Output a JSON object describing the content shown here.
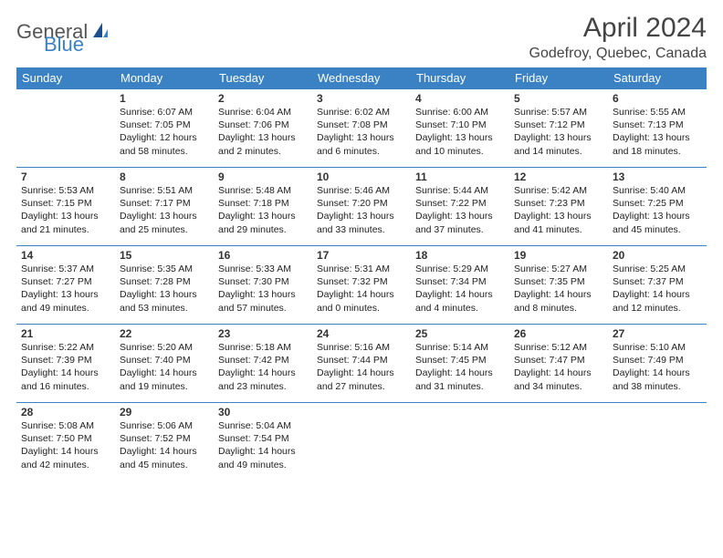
{
  "brand": {
    "general": "General",
    "blue": "Blue"
  },
  "title": "April 2024",
  "location": "Godefroy, Quebec, Canada",
  "colors": {
    "header_bg": "#3b82c4",
    "header_text": "#ffffff",
    "border": "#3b82c4",
    "text": "#222222",
    "title": "#444444"
  },
  "weekdays": [
    "Sunday",
    "Monday",
    "Tuesday",
    "Wednesday",
    "Thursday",
    "Friday",
    "Saturday"
  ],
  "weeks": [
    [
      null,
      {
        "n": "1",
        "rise": "Sunrise: 6:07 AM",
        "set": "Sunset: 7:05 PM",
        "d1": "Daylight: 12 hours",
        "d2": "and 58 minutes."
      },
      {
        "n": "2",
        "rise": "Sunrise: 6:04 AM",
        "set": "Sunset: 7:06 PM",
        "d1": "Daylight: 13 hours",
        "d2": "and 2 minutes."
      },
      {
        "n": "3",
        "rise": "Sunrise: 6:02 AM",
        "set": "Sunset: 7:08 PM",
        "d1": "Daylight: 13 hours",
        "d2": "and 6 minutes."
      },
      {
        "n": "4",
        "rise": "Sunrise: 6:00 AM",
        "set": "Sunset: 7:10 PM",
        "d1": "Daylight: 13 hours",
        "d2": "and 10 minutes."
      },
      {
        "n": "5",
        "rise": "Sunrise: 5:57 AM",
        "set": "Sunset: 7:12 PM",
        "d1": "Daylight: 13 hours",
        "d2": "and 14 minutes."
      },
      {
        "n": "6",
        "rise": "Sunrise: 5:55 AM",
        "set": "Sunset: 7:13 PM",
        "d1": "Daylight: 13 hours",
        "d2": "and 18 minutes."
      }
    ],
    [
      {
        "n": "7",
        "rise": "Sunrise: 5:53 AM",
        "set": "Sunset: 7:15 PM",
        "d1": "Daylight: 13 hours",
        "d2": "and 21 minutes."
      },
      {
        "n": "8",
        "rise": "Sunrise: 5:51 AM",
        "set": "Sunset: 7:17 PM",
        "d1": "Daylight: 13 hours",
        "d2": "and 25 minutes."
      },
      {
        "n": "9",
        "rise": "Sunrise: 5:48 AM",
        "set": "Sunset: 7:18 PM",
        "d1": "Daylight: 13 hours",
        "d2": "and 29 minutes."
      },
      {
        "n": "10",
        "rise": "Sunrise: 5:46 AM",
        "set": "Sunset: 7:20 PM",
        "d1": "Daylight: 13 hours",
        "d2": "and 33 minutes."
      },
      {
        "n": "11",
        "rise": "Sunrise: 5:44 AM",
        "set": "Sunset: 7:22 PM",
        "d1": "Daylight: 13 hours",
        "d2": "and 37 minutes."
      },
      {
        "n": "12",
        "rise": "Sunrise: 5:42 AM",
        "set": "Sunset: 7:23 PM",
        "d1": "Daylight: 13 hours",
        "d2": "and 41 minutes."
      },
      {
        "n": "13",
        "rise": "Sunrise: 5:40 AM",
        "set": "Sunset: 7:25 PM",
        "d1": "Daylight: 13 hours",
        "d2": "and 45 minutes."
      }
    ],
    [
      {
        "n": "14",
        "rise": "Sunrise: 5:37 AM",
        "set": "Sunset: 7:27 PM",
        "d1": "Daylight: 13 hours",
        "d2": "and 49 minutes."
      },
      {
        "n": "15",
        "rise": "Sunrise: 5:35 AM",
        "set": "Sunset: 7:28 PM",
        "d1": "Daylight: 13 hours",
        "d2": "and 53 minutes."
      },
      {
        "n": "16",
        "rise": "Sunrise: 5:33 AM",
        "set": "Sunset: 7:30 PM",
        "d1": "Daylight: 13 hours",
        "d2": "and 57 minutes."
      },
      {
        "n": "17",
        "rise": "Sunrise: 5:31 AM",
        "set": "Sunset: 7:32 PM",
        "d1": "Daylight: 14 hours",
        "d2": "and 0 minutes."
      },
      {
        "n": "18",
        "rise": "Sunrise: 5:29 AM",
        "set": "Sunset: 7:34 PM",
        "d1": "Daylight: 14 hours",
        "d2": "and 4 minutes."
      },
      {
        "n": "19",
        "rise": "Sunrise: 5:27 AM",
        "set": "Sunset: 7:35 PM",
        "d1": "Daylight: 14 hours",
        "d2": "and 8 minutes."
      },
      {
        "n": "20",
        "rise": "Sunrise: 5:25 AM",
        "set": "Sunset: 7:37 PM",
        "d1": "Daylight: 14 hours",
        "d2": "and 12 minutes."
      }
    ],
    [
      {
        "n": "21",
        "rise": "Sunrise: 5:22 AM",
        "set": "Sunset: 7:39 PM",
        "d1": "Daylight: 14 hours",
        "d2": "and 16 minutes."
      },
      {
        "n": "22",
        "rise": "Sunrise: 5:20 AM",
        "set": "Sunset: 7:40 PM",
        "d1": "Daylight: 14 hours",
        "d2": "and 19 minutes."
      },
      {
        "n": "23",
        "rise": "Sunrise: 5:18 AM",
        "set": "Sunset: 7:42 PM",
        "d1": "Daylight: 14 hours",
        "d2": "and 23 minutes."
      },
      {
        "n": "24",
        "rise": "Sunrise: 5:16 AM",
        "set": "Sunset: 7:44 PM",
        "d1": "Daylight: 14 hours",
        "d2": "and 27 minutes."
      },
      {
        "n": "25",
        "rise": "Sunrise: 5:14 AM",
        "set": "Sunset: 7:45 PM",
        "d1": "Daylight: 14 hours",
        "d2": "and 31 minutes."
      },
      {
        "n": "26",
        "rise": "Sunrise: 5:12 AM",
        "set": "Sunset: 7:47 PM",
        "d1": "Daylight: 14 hours",
        "d2": "and 34 minutes."
      },
      {
        "n": "27",
        "rise": "Sunrise: 5:10 AM",
        "set": "Sunset: 7:49 PM",
        "d1": "Daylight: 14 hours",
        "d2": "and 38 minutes."
      }
    ],
    [
      {
        "n": "28",
        "rise": "Sunrise: 5:08 AM",
        "set": "Sunset: 7:50 PM",
        "d1": "Daylight: 14 hours",
        "d2": "and 42 minutes."
      },
      {
        "n": "29",
        "rise": "Sunrise: 5:06 AM",
        "set": "Sunset: 7:52 PM",
        "d1": "Daylight: 14 hours",
        "d2": "and 45 minutes."
      },
      {
        "n": "30",
        "rise": "Sunrise: 5:04 AM",
        "set": "Sunset: 7:54 PM",
        "d1": "Daylight: 14 hours",
        "d2": "and 49 minutes."
      },
      null,
      null,
      null,
      null
    ]
  ]
}
